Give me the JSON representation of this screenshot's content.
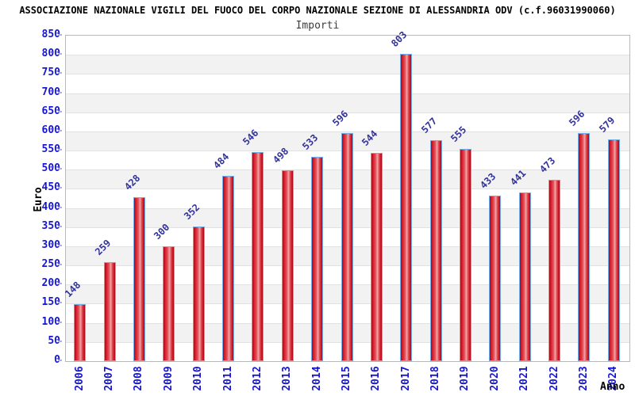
{
  "header": {
    "title": "ASSOCIAZIONE NAZIONALE VIGILI DEL FUOCO DEL CORPO NAZIONALE SEZIONE DI ALESSANDRIA ODV (c.f.96031990060)",
    "subtitle": "Importi"
  },
  "chart_data": {
    "type": "bar",
    "title": "ASSOCIAZIONE NAZIONALE VIGILI DEL FUOCO DEL CORPO NAZIONALE SEZIONE DI ALESSANDRIA ODV (c.f.96031990060)",
    "subtitle": "Importi",
    "xlabel": "Anno",
    "ylabel": "Euro",
    "categories": [
      "2006",
      "2007",
      "2008",
      "2009",
      "2010",
      "2011",
      "2012",
      "2013",
      "2014",
      "2015",
      "2016",
      "2017",
      "2018",
      "2019",
      "2020",
      "2021",
      "2022",
      "2023",
      "2024"
    ],
    "values": [
      148,
      259,
      428,
      300,
      352,
      484,
      546,
      498,
      533,
      596,
      544,
      803,
      577,
      555,
      433,
      441,
      473,
      596,
      579
    ],
    "ylim": [
      0,
      850
    ],
    "ytick_step": 50,
    "legend": "none",
    "grid": "horizontal alternating bands every 50 units",
    "value_labels": "shown above bars, rotated 45deg",
    "colors": {
      "bar_fill_main": "#d91d2c",
      "bar_fill_light_center": "#eda9a6",
      "bar_fill_dark_edge": "#9e0c1a",
      "bar_border": "#74aee6",
      "axis_tick_label": "#1616d0",
      "value_label": "#32329b",
      "band_gray": "#f2f2f2",
      "band_white": "#ffffff",
      "gridline": "#e2e2e2",
      "plot_border": "#b8b8b8",
      "title_color": "#000000",
      "subtitle_color": "#3c3c3c"
    }
  }
}
